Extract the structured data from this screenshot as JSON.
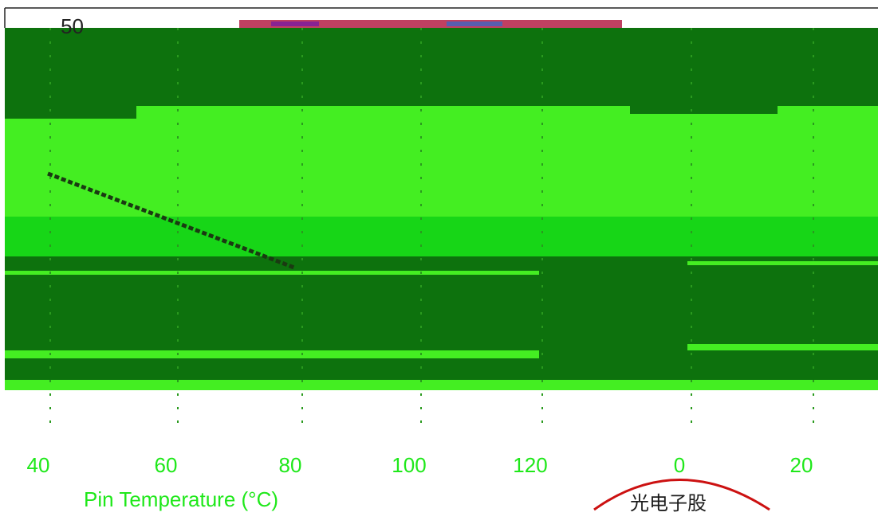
{
  "colors": {
    "background": "#ffffff",
    "plot_light": "#44ee22",
    "plot_dark": "#0d720d",
    "plot_mid": "#17d617",
    "gridline": "#2a9a1e",
    "curve": "#1a3a12",
    "text": "#1fe81a",
    "seal_red": "#cc1111",
    "glitch_red": "#b0103a"
  },
  "chart_data": {
    "type": "line",
    "title": "",
    "xlabel": "Pin Temperature (°C)",
    "ylabel": "",
    "x_ticks": [
      "40",
      "60",
      "80",
      "100",
      "120",
      "0",
      "20"
    ],
    "y_ticks": [
      "50"
    ],
    "series": [
      {
        "x": [
          40,
          50,
          60,
          70,
          80
        ],
        "y": [
          25,
          21,
          17,
          13,
          9
        ]
      }
    ],
    "grid": true,
    "legend": "none"
  },
  "seal": {
    "text": "光电子股"
  }
}
